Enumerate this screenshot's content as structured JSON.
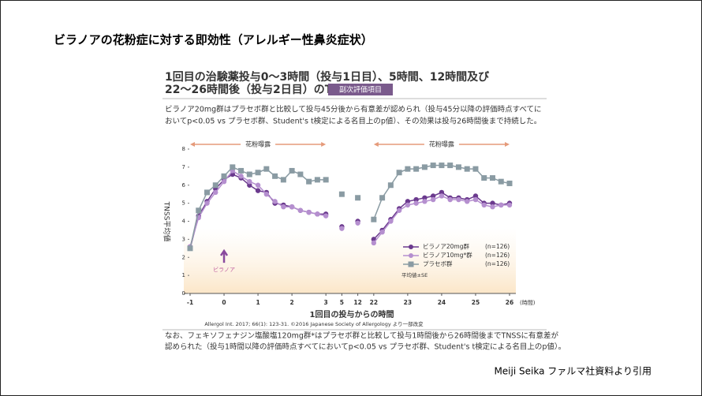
{
  "slide_title": "ビラノアの花粉症に対する即効性（アレルギー性鼻炎症状）",
  "footer": "Meiji Seika ファルマ社資料より引用",
  "chart_data": {
    "type": "line",
    "title": [
      "1回目の治験薬投与0〜3時間（投与1日目）、5時間、12時間及び",
      "22〜26時間後（投与2日目）のTNSS"
    ],
    "badge": "副次評価項目",
    "description": [
      "ビラノア20mg群はプラセボ群と比較して投与45分後から有意差が認められ（投与45分以降の評価時点すべてに",
      "おいてp<0.05 vs プラセボ群、Student's t検定による名目上のp値）、その効果は投与26時間後まで持続した。"
    ],
    "exposure_label": "花粉曝露",
    "annotation": "ビラノア",
    "y_label": "TNSS平均値",
    "x_label": "1回目の投与からの時間",
    "x_unit": "(時間)",
    "stat_note": "平均値±SE",
    "citation": "Allergol Int. 2017; 66(1): 123-31. ©2016 Japanese Society of Allergology より一部改変",
    "footnote": [
      "なお、フェキソフェナジン塩酸塩120mg群*はプラセボ群と比較して投与1時間後から26時間後までTNSSに有意差が",
      "認められた（投与1時間以降の評価時点すべてにおいてp<0.05 vs プラセボ群、Student's t検定による名目上のp値）。"
    ],
    "x": [
      -1,
      -0.75,
      -0.5,
      -0.25,
      0,
      0.25,
      0.5,
      0.75,
      1,
      1.25,
      1.5,
      1.75,
      2,
      2.25,
      2.5,
      2.75,
      3,
      5,
      12,
      22,
      22.25,
      22.5,
      22.75,
      23,
      23.25,
      23.5,
      23.75,
      24,
      24.25,
      24.5,
      24.75,
      25,
      25.25,
      25.5,
      25.75,
      26
    ],
    "series": [
      {
        "name": "ビラノア20mg群",
        "n": "(n=126)",
        "color": "#6b3a8e",
        "marker": "circle",
        "values": [
          2.5,
          4.3,
          5.1,
          5.8,
          6.3,
          6.6,
          6.4,
          6.0,
          5.7,
          5.6,
          5.0,
          4.9,
          4.8,
          4.6,
          4.5,
          4.4,
          4.4,
          3.7,
          4.0,
          3.0,
          3.5,
          4.1,
          4.7,
          5.1,
          5.2,
          5.3,
          5.4,
          5.6,
          5.3,
          5.3,
          5.2,
          5.4,
          5.0,
          5.0,
          4.9,
          5.0
        ]
      },
      {
        "name": "ビラノア10mg*群",
        "n": "(n=126)",
        "color": "#b58fcf",
        "marker": "circle",
        "values": [
          2.6,
          4.2,
          5.0,
          5.6,
          6.2,
          6.8,
          6.5,
          6.2,
          6.0,
          5.5,
          5.1,
          4.8,
          4.8,
          4.6,
          4.5,
          4.4,
          4.3,
          3.6,
          3.9,
          2.8,
          3.4,
          4.0,
          4.6,
          4.9,
          5.0,
          5.1,
          5.2,
          5.4,
          5.2,
          5.2,
          5.1,
          5.2,
          4.9,
          4.8,
          4.9,
          4.9
        ]
      },
      {
        "name": "プラセボ群",
        "n": "(n=126)",
        "color": "#8a9ba3",
        "marker": "square",
        "values": [
          2.5,
          4.6,
          5.6,
          6.0,
          6.5,
          7.0,
          6.8,
          6.6,
          6.7,
          6.9,
          6.5,
          6.3,
          6.8,
          6.6,
          6.2,
          6.3,
          6.3,
          5.5,
          5.3,
          4.1,
          5.3,
          6.0,
          6.7,
          6.9,
          6.9,
          7.0,
          7.1,
          7.1,
          7.1,
          7.0,
          6.9,
          6.9,
          6.4,
          6.4,
          6.2,
          6.1
        ]
      }
    ],
    "ylim": [
      0,
      8
    ],
    "yticks": [
      0,
      1,
      2,
      3,
      4,
      5,
      6,
      7,
      8
    ],
    "xticks": [
      -1,
      0,
      1,
      2,
      3,
      5,
      12,
      22,
      23,
      24,
      25,
      26
    ]
  }
}
